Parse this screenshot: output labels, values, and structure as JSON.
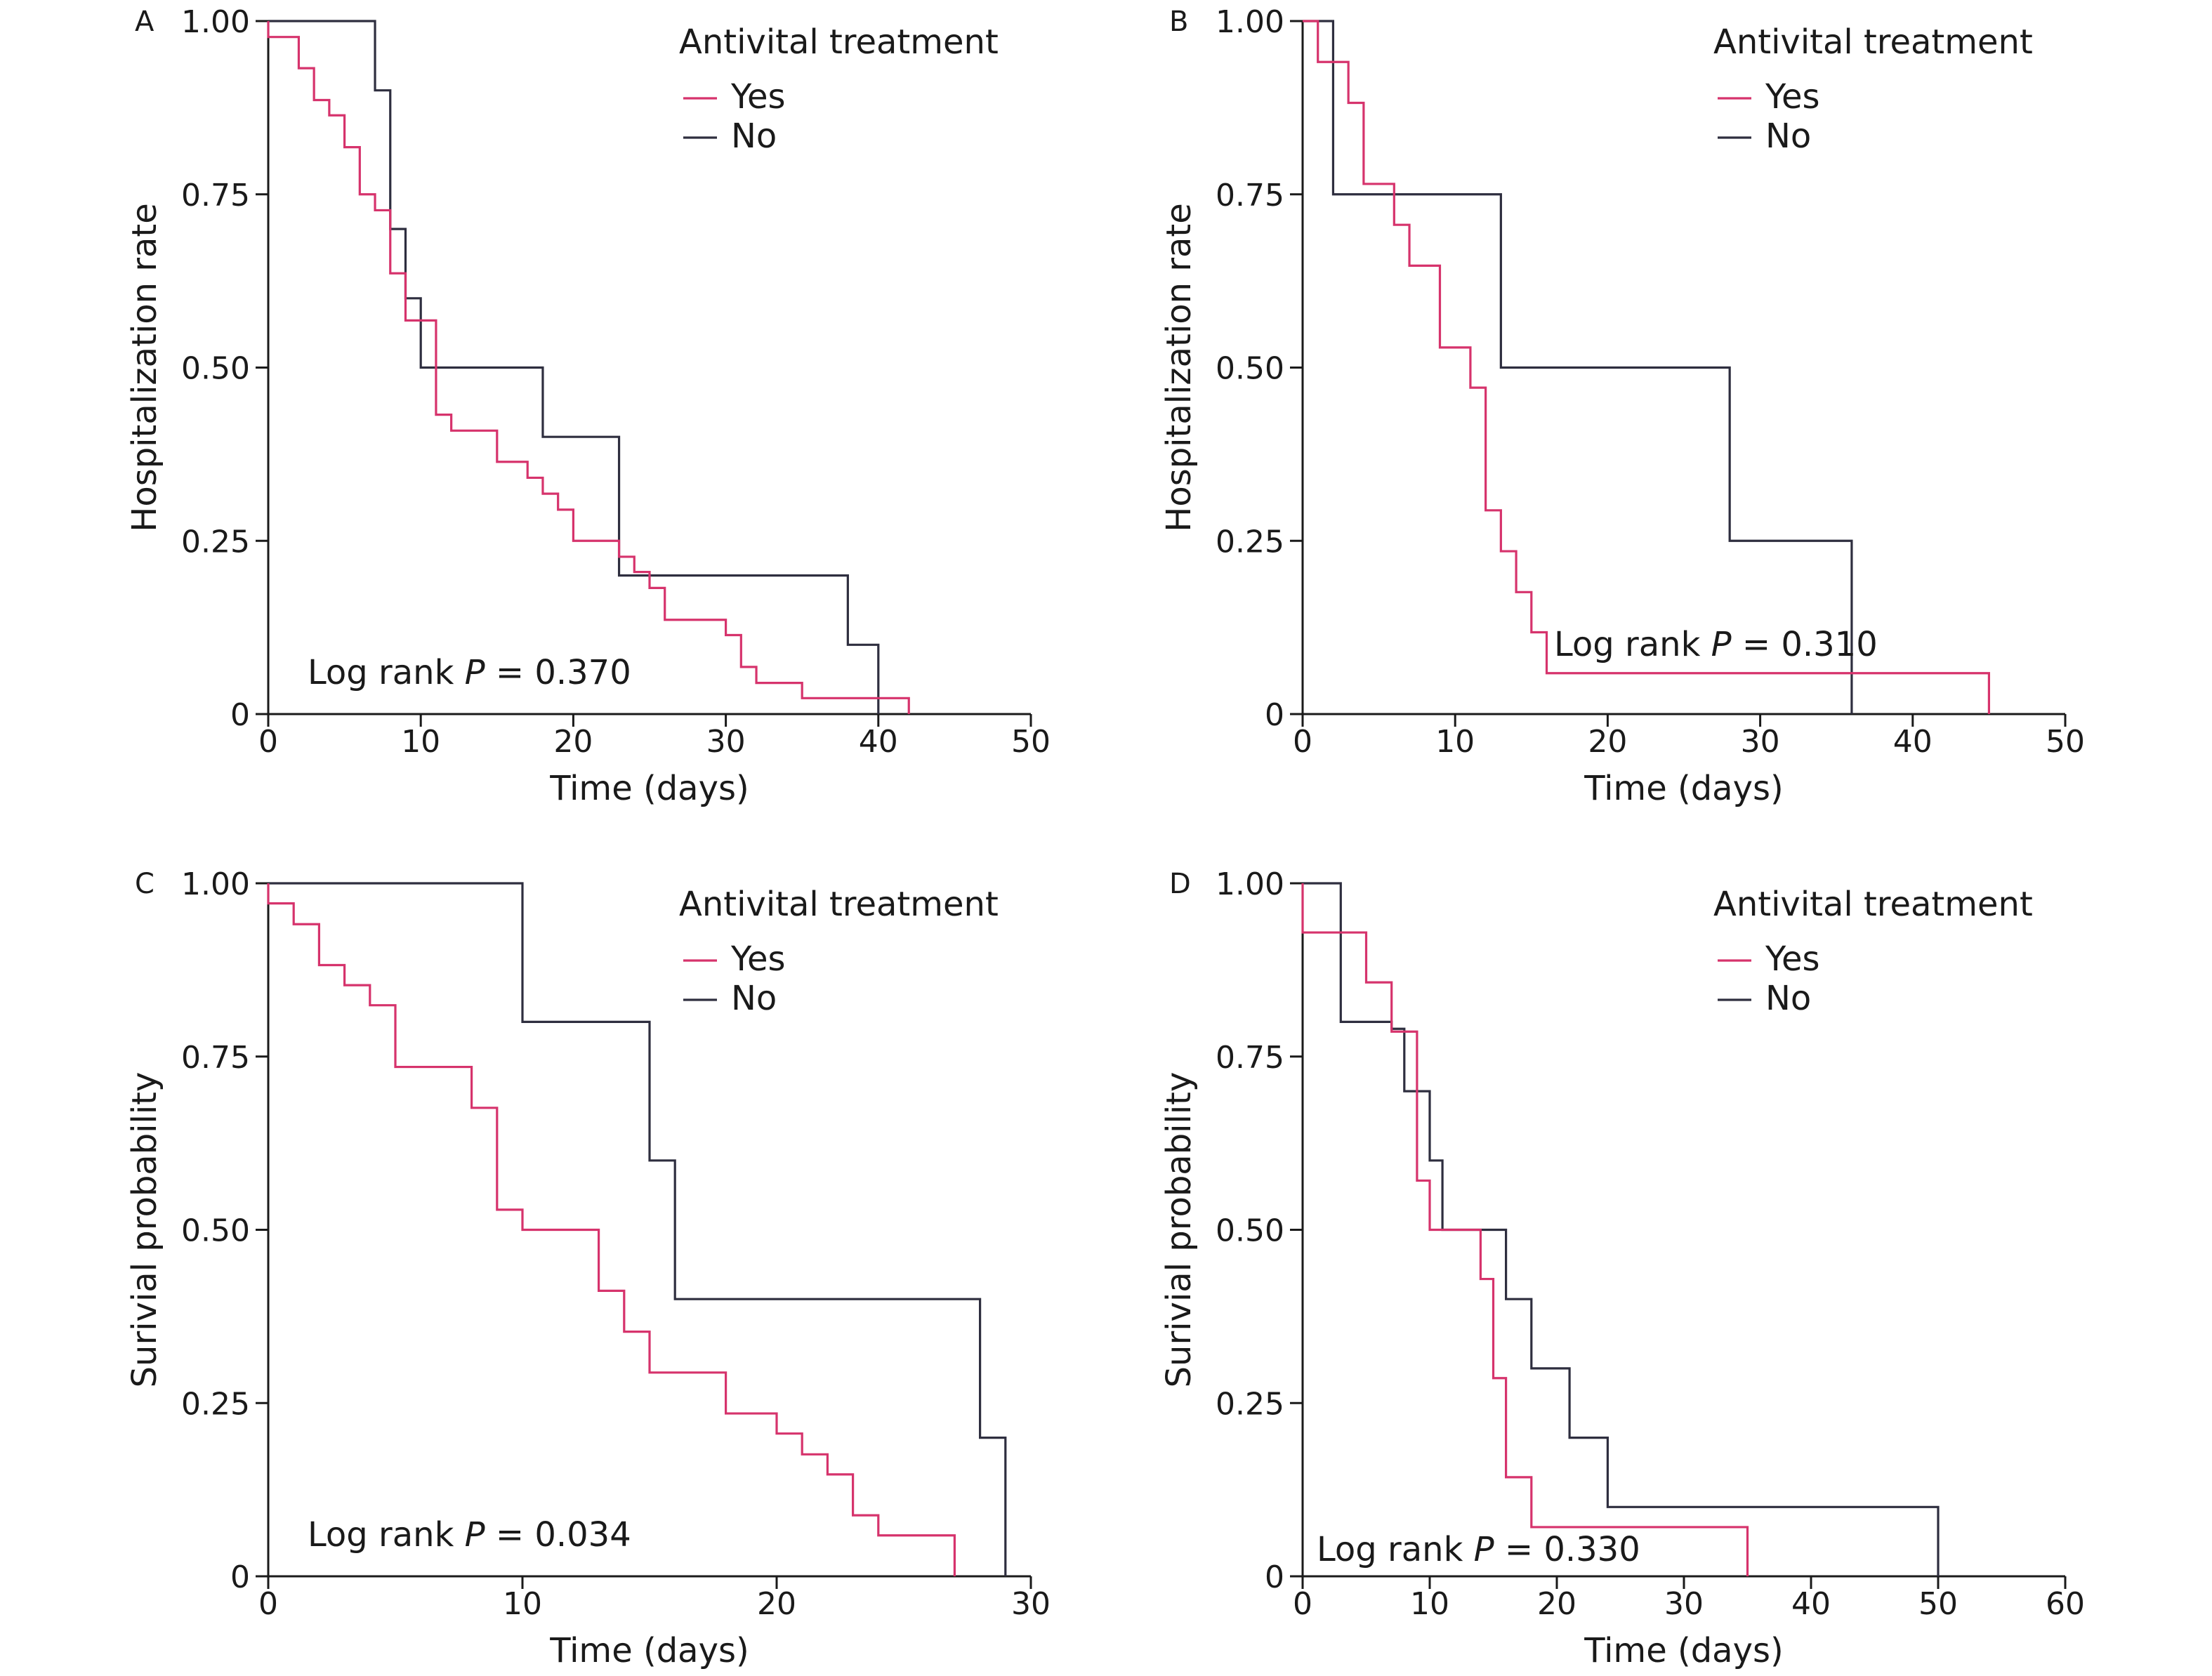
{
  "colors": {
    "yes": "#d6336c",
    "no": "#2e2e3f",
    "axis": "#1a1a1a"
  },
  "chart_data": [
    {
      "panel": "A",
      "type": "line",
      "step": true,
      "xlabel": "Time (days)",
      "ylabel": "Hospitalization rate",
      "xlim": [
        0,
        50
      ],
      "ylim": [
        0,
        1
      ],
      "xticks": [
        "0",
        "10",
        "20",
        "30",
        "40",
        "50"
      ],
      "yticks": [
        "0",
        "0.25",
        "0.50",
        "0.75",
        "1.00"
      ],
      "legend_title": "Antivital treatment",
      "legend_position": "top-right",
      "annotation": {
        "prefix": "Log rank ",
        "p": "P",
        "value": " = 0.370"
      },
      "series": [
        {
          "name": "Yes",
          "color_key": "yes",
          "x": [
            0,
            2,
            3,
            4,
            5,
            6,
            7,
            8,
            9,
            11,
            12,
            15,
            17,
            18,
            19,
            20,
            23,
            24,
            25,
            26,
            30,
            31,
            32,
            35,
            42
          ],
          "y": [
            0.977,
            0.932,
            0.886,
            0.864,
            0.818,
            0.75,
            0.727,
            0.636,
            0.568,
            0.432,
            0.409,
            0.364,
            0.341,
            0.318,
            0.295,
            0.25,
            0.227,
            0.205,
            0.182,
            0.136,
            0.114,
            0.068,
            0.045,
            0.023,
            0
          ]
        },
        {
          "name": "No",
          "color_key": "no",
          "x": [
            0,
            7,
            8,
            9,
            10,
            18,
            23,
            38,
            40
          ],
          "y": [
            1,
            0.9,
            0.7,
            0.6,
            0.5,
            0.4,
            0.2,
            0.1,
            0
          ]
        }
      ]
    },
    {
      "panel": "B",
      "type": "line",
      "step": true,
      "xlabel": "Time (days)",
      "ylabel": "Hospitalization rate",
      "xlim": [
        0,
        50
      ],
      "ylim": [
        0,
        1
      ],
      "xticks": [
        "0",
        "10",
        "20",
        "30",
        "40",
        "50"
      ],
      "yticks": [
        "0",
        "0.25",
        "0.50",
        "0.75",
        "1.00"
      ],
      "legend_title": "Antivital treatment",
      "legend_position": "top-right",
      "annotation": {
        "prefix": "Log rank ",
        "p": "P",
        "value": " = 0.310"
      },
      "series": [
        {
          "name": "Yes",
          "color_key": "yes",
          "x": [
            0,
            1,
            3,
            4,
            6,
            7,
            9,
            11,
            12,
            13,
            14,
            15,
            16,
            45
          ],
          "y": [
            1,
            0.941,
            0.882,
            0.765,
            0.706,
            0.647,
            0.529,
            0.471,
            0.294,
            0.235,
            0.176,
            0.118,
            0.059,
            0
          ]
        },
        {
          "name": "No",
          "color_key": "no",
          "x": [
            0,
            2,
            13,
            28,
            36
          ],
          "y": [
            1,
            0.75,
            0.5,
            0.25,
            0
          ]
        }
      ]
    },
    {
      "panel": "C",
      "type": "line",
      "step": true,
      "xlabel": "Time (days)",
      "ylabel": "Surivial probability",
      "xlim": [
        0,
        30
      ],
      "ylim": [
        0,
        1
      ],
      "xticks": [
        "0",
        "10",
        "20",
        "30"
      ],
      "yticks": [
        "0",
        "0.25",
        "0.50",
        "0.75",
        "1.00"
      ],
      "legend_title": "Antivital treatment",
      "legend_position": "top-right",
      "annotation": {
        "prefix": "Log rank ",
        "p": "P",
        "value": " = 0.034"
      },
      "series": [
        {
          "name": "Yes",
          "color_key": "yes",
          "x": [
            0,
            1,
            2,
            3,
            4,
            5,
            8,
            9,
            10,
            13,
            14,
            15,
            18,
            20,
            21,
            22,
            23,
            24,
            27
          ],
          "y": [
            0.971,
            0.941,
            0.882,
            0.853,
            0.824,
            0.735,
            0.676,
            0.529,
            0.5,
            0.412,
            0.353,
            0.294,
            0.235,
            0.206,
            0.176,
            0.147,
            0.088,
            0.059,
            0
          ]
        },
        {
          "name": "No",
          "color_key": "no",
          "x": [
            0,
            10,
            15,
            16,
            28,
            29
          ],
          "y": [
            1,
            0.8,
            0.6,
            0.4,
            0.2,
            0
          ]
        }
      ]
    },
    {
      "panel": "D",
      "type": "line",
      "step": true,
      "xlabel": "Time (days)",
      "ylabel": "Surivial probability",
      "xlim": [
        0,
        60
      ],
      "ylim": [
        0,
        1
      ],
      "xticks": [
        "0",
        "10",
        "20",
        "30",
        "40",
        "50",
        "60"
      ],
      "yticks": [
        "0",
        "0.25",
        "0.50",
        "0.75",
        "1.00"
      ],
      "legend_title": "Antivital treatment",
      "legend_position": "top-right",
      "annotation": {
        "prefix": "Log rank ",
        "p": "P",
        "value": " = 0.330"
      },
      "series": [
        {
          "name": "Yes",
          "color_key": "yes",
          "x": [
            0,
            5,
            7,
            9,
            10,
            14,
            15,
            16,
            18,
            35
          ],
          "y": [
            0.929,
            0.857,
            0.786,
            0.571,
            0.5,
            0.429,
            0.286,
            0.143,
            0.071,
            0
          ]
        },
        {
          "name": "No",
          "color_key": "no",
          "x": [
            0,
            3,
            7,
            8,
            10,
            11,
            16,
            18,
            21,
            24,
            50
          ],
          "y": [
            1,
            0.8,
            0.79,
            0.7,
            0.6,
            0.5,
            0.4,
            0.3,
            0.2,
            0.1,
            0
          ]
        }
      ]
    }
  ]
}
